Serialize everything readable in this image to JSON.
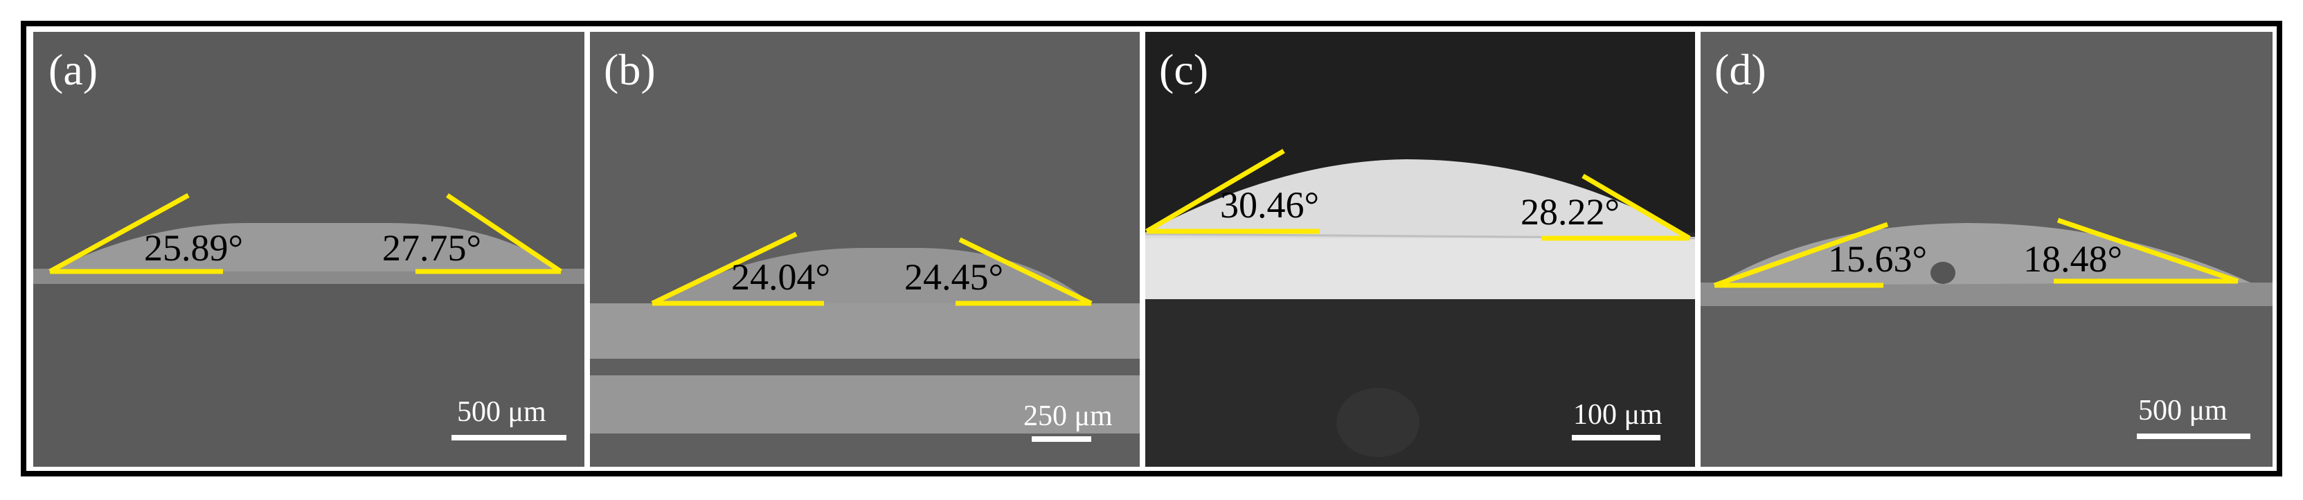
{
  "colors": {
    "frame": "#000000",
    "background": "#ffffff",
    "angle_line": "#ffea00",
    "angle_text": "#000000",
    "label_text": "#ffffff",
    "scale_bar": "#ffffff"
  },
  "panels": [
    {
      "label": "(a)",
      "angle_left": "25.89°",
      "angle_right": "27.75°",
      "scale": "500 μm"
    },
    {
      "label": "(b)",
      "angle_left": "24.04°",
      "angle_right": "24.45°",
      "scale": "250 μm"
    },
    {
      "label": "(c)",
      "angle_left": "30.46°",
      "angle_right": "28.22°",
      "scale": "100 μm"
    },
    {
      "label": "(d)",
      "angle_left": "15.63°",
      "angle_right": "18.48°",
      "scale": "500 μm"
    }
  ]
}
